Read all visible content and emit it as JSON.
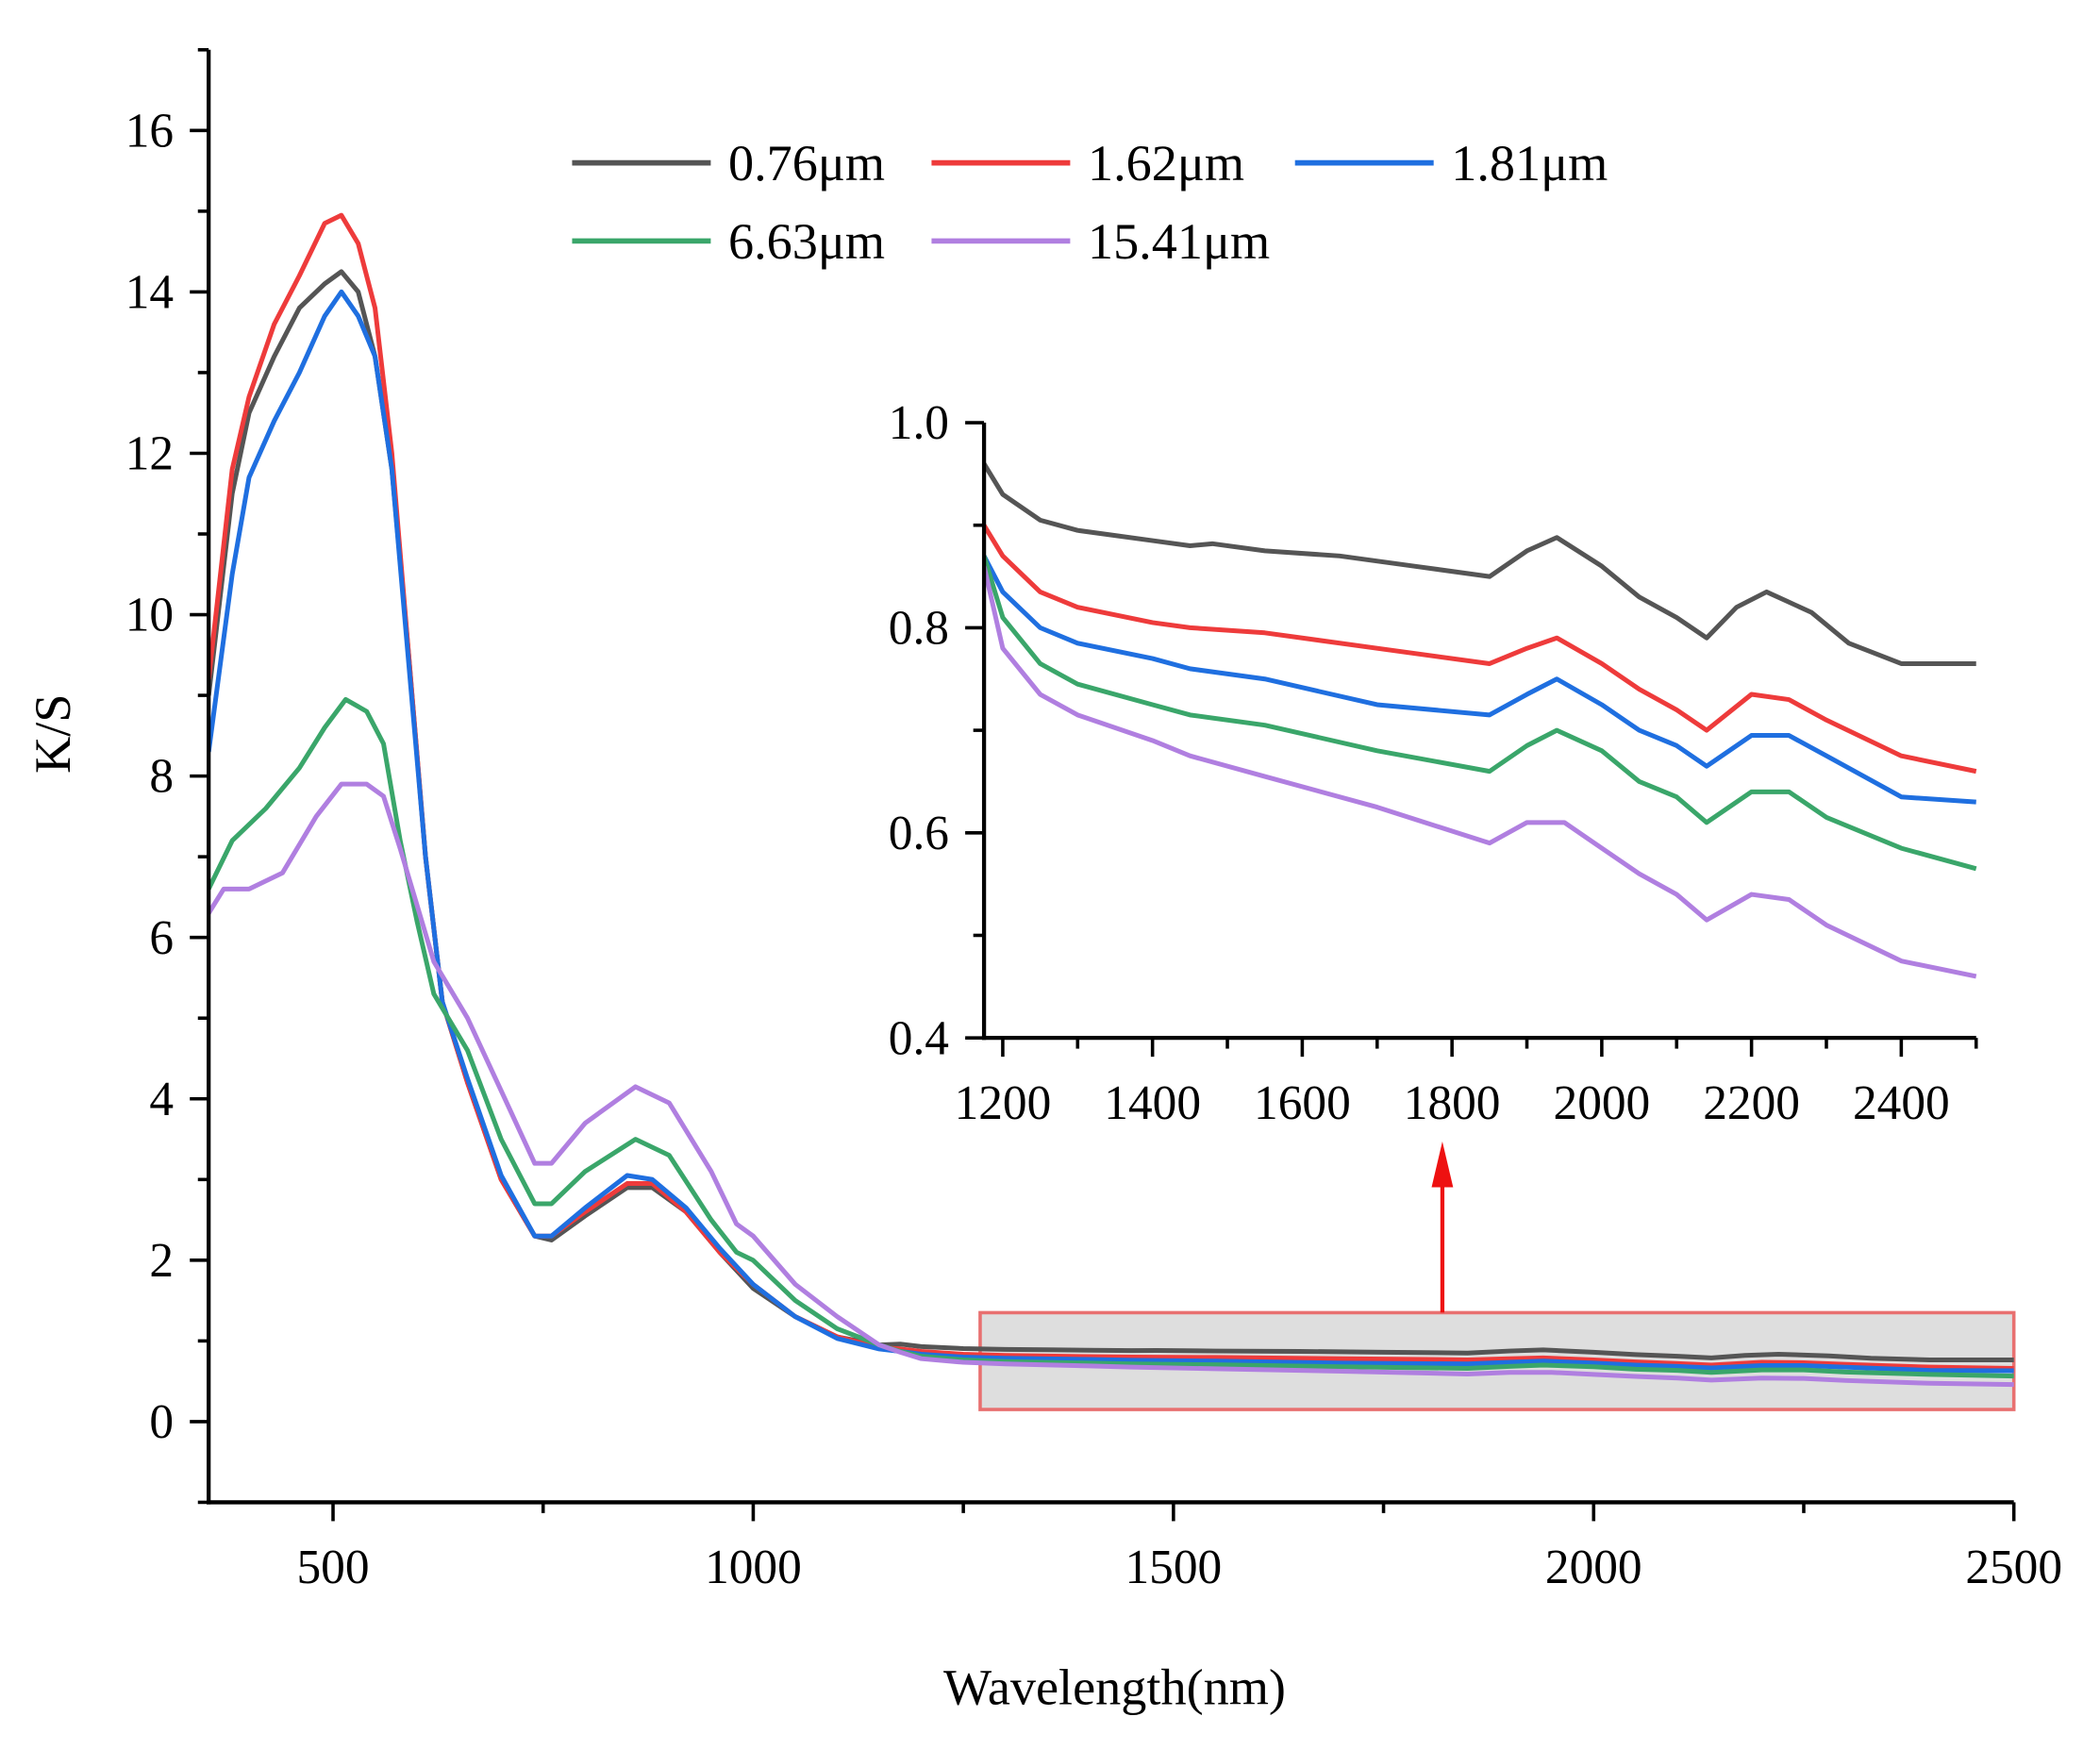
{
  "colors": {
    "0.76um": "#555555",
    "1.62um": "#ee3b3b",
    "1.81um": "#1f6fe0",
    "6.63um": "#3aa66a",
    "15.41um": "#b07fe0",
    "highlight": "#e87070",
    "arrow": "#ee1111"
  },
  "chart_data": [
    {
      "type": "line",
      "title": "",
      "xlabel": "Wavelength(nm)",
      "ylabel": "K/S",
      "xlim": [
        352,
        2500
      ],
      "ylim": [
        -1,
        17
      ],
      "xticks": [
        500,
        1000,
        1500,
        2000,
        2500
      ],
      "xtick_labels": [
        "500",
        "1000",
        "1500",
        "2000",
        "2500"
      ],
      "yticks": [
        0,
        2,
        4,
        6,
        8,
        10,
        12,
        14,
        16
      ],
      "ytick_labels": [
        "0",
        "2",
        "4",
        "6",
        "8",
        "10",
        "12",
        "14",
        "16"
      ],
      "grid": false,
      "legend_placement": "top-center",
      "highlight_region": {
        "x": [
          1270,
          2500
        ],
        "y": [
          0.15,
          1.35
        ]
      },
      "series": [
        {
          "name": "0.76μm",
          "color_key": "0.76um",
          "x": [
            352,
            380,
            400,
            430,
            460,
            490,
            510,
            530,
            550,
            570,
            590,
            610,
            630,
            660,
            700,
            740,
            760,
            800,
            850,
            880,
            920,
            960,
            1000,
            1050,
            1100,
            1150,
            1175,
            1200,
            1250,
            1300,
            1350,
            1400,
            1450,
            1480,
            1550,
            1650,
            1750,
            1850,
            1900,
            1940,
            2000,
            2050,
            2100,
            2140,
            2180,
            2220,
            2280,
            2330,
            2400,
            2500
          ],
          "y": [
            9.0,
            11.5,
            12.5,
            13.2,
            13.8,
            14.1,
            14.25,
            14.0,
            13.2,
            11.8,
            9.5,
            7.0,
            5.2,
            4.2,
            3.0,
            2.3,
            2.25,
            2.55,
            2.9,
            2.9,
            2.6,
            2.1,
            1.65,
            1.3,
            1.05,
            0.95,
            0.96,
            0.93,
            0.905,
            0.895,
            0.89,
            0.885,
            0.88,
            0.882,
            0.875,
            0.87,
            0.86,
            0.85,
            0.875,
            0.888,
            0.86,
            0.83,
            0.81,
            0.79,
            0.82,
            0.835,
            0.815,
            0.785,
            0.765,
            0.765
          ]
        },
        {
          "name": "1.62μm",
          "color_key": "1.62um",
          "x": [
            352,
            380,
            400,
            430,
            460,
            490,
            510,
            530,
            550,
            570,
            590,
            610,
            630,
            660,
            700,
            740,
            760,
            800,
            850,
            880,
            920,
            960,
            1000,
            1050,
            1100,
            1150,
            1175,
            1200,
            1250,
            1300,
            1400,
            1450,
            1550,
            1700,
            1850,
            1900,
            1940,
            2000,
            2050,
            2100,
            2140,
            2200,
            2250,
            2300,
            2400,
            2500
          ],
          "y": [
            9.2,
            11.8,
            12.7,
            13.6,
            14.2,
            14.85,
            14.95,
            14.6,
            13.8,
            12.0,
            9.5,
            7.0,
            5.2,
            4.2,
            3.0,
            2.3,
            2.3,
            2.6,
            2.95,
            2.95,
            2.6,
            2.1,
            1.7,
            1.3,
            1.05,
            0.92,
            0.9,
            0.87,
            0.835,
            0.82,
            0.805,
            0.8,
            0.795,
            0.78,
            0.765,
            0.78,
            0.79,
            0.765,
            0.74,
            0.72,
            0.7,
            0.735,
            0.73,
            0.71,
            0.675,
            0.66
          ]
        },
        {
          "name": "1.81μm",
          "color_key": "1.81um",
          "x": [
            352,
            380,
            400,
            430,
            460,
            490,
            510,
            530,
            550,
            570,
            590,
            610,
            630,
            660,
            700,
            740,
            760,
            800,
            850,
            880,
            920,
            960,
            1000,
            1050,
            1100,
            1150,
            1175,
            1200,
            1250,
            1300,
            1400,
            1450,
            1550,
            1700,
            1850,
            1900,
            1940,
            2000,
            2050,
            2100,
            2140,
            2200,
            2250,
            2300,
            2400,
            2500
          ],
          "y": [
            8.3,
            10.5,
            11.7,
            12.4,
            13.0,
            13.7,
            14.0,
            13.7,
            13.2,
            11.8,
            9.4,
            7.0,
            5.2,
            4.25,
            3.05,
            2.3,
            2.3,
            2.65,
            3.05,
            3.0,
            2.65,
            2.15,
            1.7,
            1.3,
            1.03,
            0.9,
            0.87,
            0.835,
            0.8,
            0.785,
            0.77,
            0.76,
            0.75,
            0.725,
            0.715,
            0.735,
            0.75,
            0.725,
            0.7,
            0.685,
            0.665,
            0.695,
            0.695,
            0.675,
            0.635,
            0.63
          ]
        },
        {
          "name": "6.63μm",
          "color_key": "6.63um",
          "x": [
            352,
            380,
            420,
            460,
            490,
            515,
            540,
            560,
            580,
            600,
            620,
            660,
            700,
            740,
            760,
            800,
            860,
            900,
            950,
            980,
            1000,
            1050,
            1100,
            1150,
            1175,
            1200,
            1250,
            1300,
            1400,
            1450,
            1550,
            1700,
            1850,
            1900,
            1940,
            2000,
            2050,
            2100,
            2140,
            2200,
            2250,
            2300,
            2400,
            2500
          ],
          "y": [
            6.6,
            7.2,
            7.6,
            8.1,
            8.6,
            8.95,
            8.8,
            8.4,
            7.2,
            6.2,
            5.3,
            4.6,
            3.5,
            2.7,
            2.7,
            3.1,
            3.5,
            3.3,
            2.5,
            2.1,
            2.0,
            1.5,
            1.15,
            0.95,
            0.87,
            0.81,
            0.765,
            0.745,
            0.725,
            0.715,
            0.705,
            0.68,
            0.66,
            0.685,
            0.7,
            0.68,
            0.65,
            0.635,
            0.61,
            0.64,
            0.64,
            0.615,
            0.585,
            0.565
          ]
        },
        {
          "name": "15.41μm",
          "color_key": "15.41um",
          "x": [
            352,
            370,
            400,
            440,
            480,
            510,
            540,
            560,
            580,
            600,
            620,
            660,
            700,
            740,
            760,
            800,
            860,
            900,
            950,
            980,
            1000,
            1050,
            1100,
            1150,
            1175,
            1200,
            1250,
            1300,
            1400,
            1450,
            1550,
            1700,
            1850,
            1900,
            1950,
            2000,
            2050,
            2100,
            2140,
            2200,
            2250,
            2300,
            2400,
            2500
          ],
          "y": [
            6.3,
            6.6,
            6.6,
            6.8,
            7.5,
            7.9,
            7.9,
            7.75,
            7.1,
            6.4,
            5.7,
            5.0,
            4.1,
            3.2,
            3.2,
            3.7,
            4.15,
            3.95,
            3.1,
            2.45,
            2.3,
            1.7,
            1.3,
            0.95,
            0.86,
            0.78,
            0.735,
            0.715,
            0.69,
            0.675,
            0.655,
            0.625,
            0.59,
            0.61,
            0.61,
            0.585,
            0.56,
            0.54,
            0.515,
            0.54,
            0.535,
            0.51,
            0.475,
            0.46
          ]
        }
      ]
    },
    {
      "type": "line",
      "title": "",
      "inset_of": "main",
      "xlabel": "",
      "ylabel": "",
      "xlim": [
        1175,
        2500
      ],
      "ylim": [
        0.4,
        1.0
      ],
      "xticks": [
        1200,
        1400,
        1600,
        1800,
        2000,
        2200,
        2400
      ],
      "xtick_labels": [
        "1200",
        "1400",
        "1600",
        "1800",
        "2000",
        "2200",
        "2400"
      ],
      "yticks": [
        0.4,
        0.6,
        0.8,
        1.0
      ],
      "ytick_labels": [
        "0.4",
        "0.6",
        "0.8",
        "1.0"
      ],
      "grid": false,
      "series_from": "same five series as main chart, restricted to xlim"
    }
  ]
}
